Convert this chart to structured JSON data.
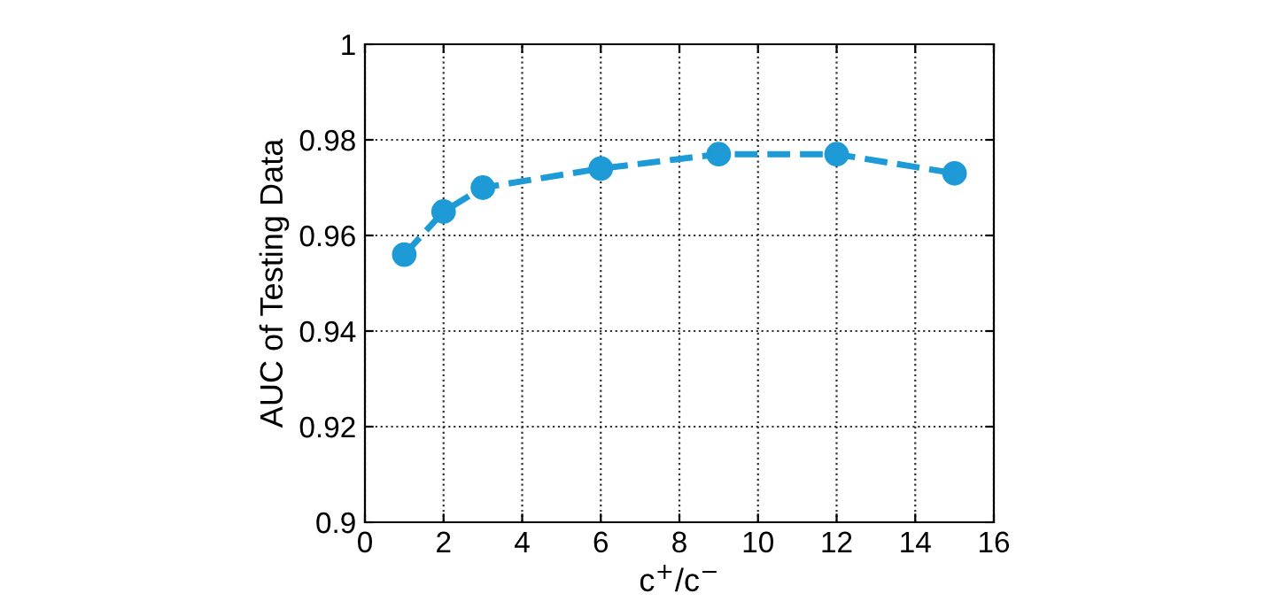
{
  "chart_data": {
    "type": "line",
    "xlabel": "c$^{+}$/c$^{−}$",
    "ylabel": "AUC of Testing Data",
    "x": [
      1,
      2,
      3,
      6,
      9,
      12,
      15
    ],
    "series": [
      {
        "color": "#1e9ad6",
        "values": [
          0.956,
          0.965,
          0.97,
          0.974,
          0.977,
          0.977,
          0.973
        ]
      }
    ],
    "xlim": [
      0,
      16
    ],
    "xticks": [
      0,
      2,
      4,
      6,
      8,
      10,
      12,
      14,
      16
    ],
    "ylim": [
      0.9,
      1
    ],
    "yticks": [
      0.9,
      0.92,
      0.94,
      0.96,
      0.98,
      1
    ],
    "grid": true,
    "marker": "circle",
    "line_style": "dashed"
  }
}
